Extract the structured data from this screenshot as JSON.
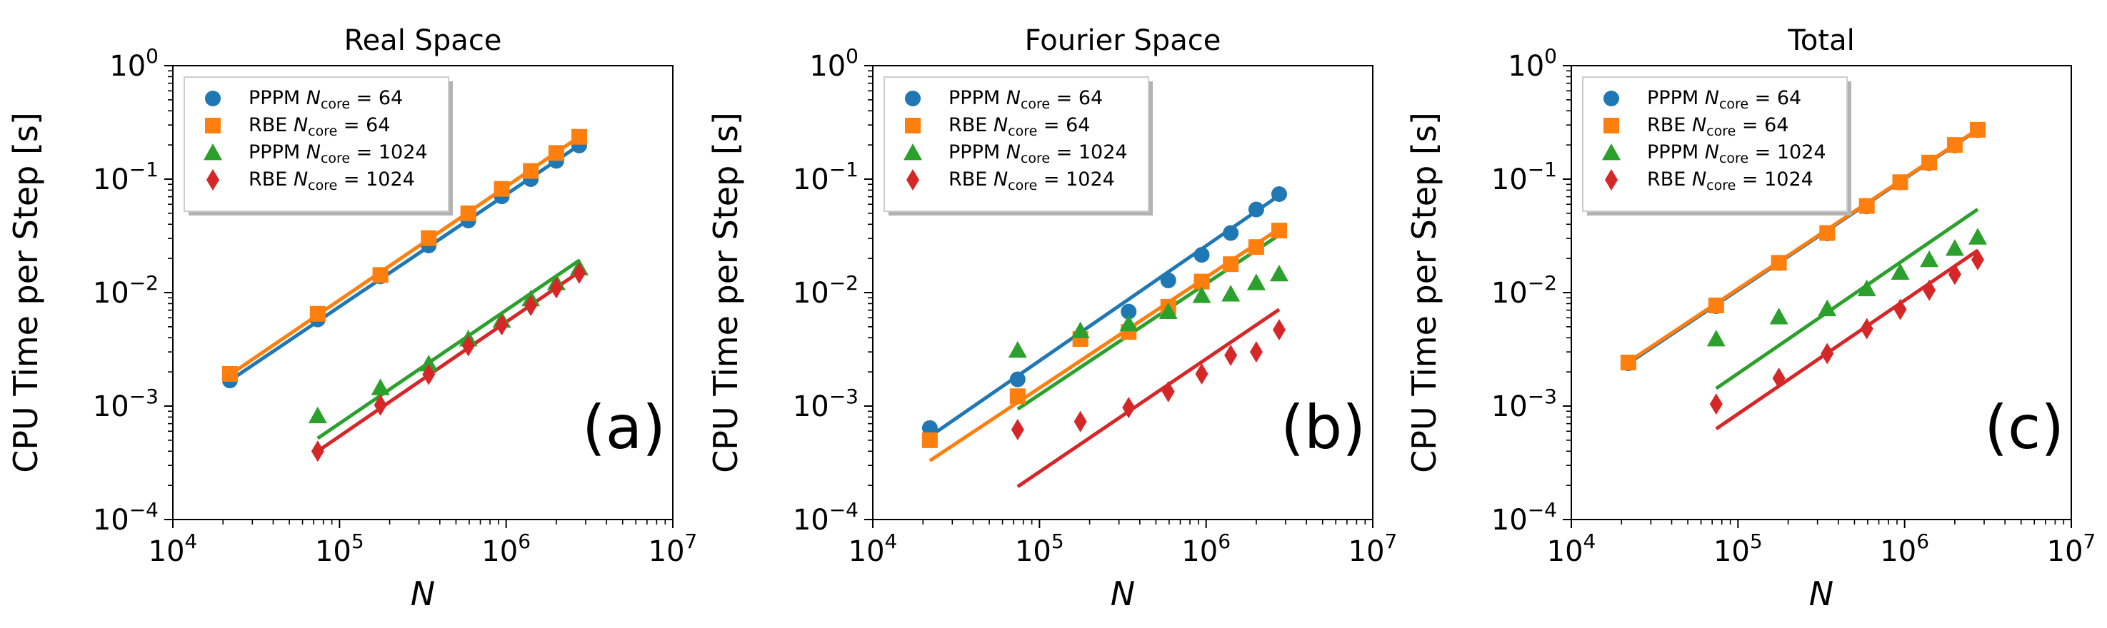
{
  "figure": {
    "colors": {
      "PPPM_64": "#1f77b4",
      "RBE_64": "#ff7f0e",
      "PPPM_1024": "#2ca02c",
      "RBE_1024": "#d62728"
    },
    "legend_entries": [
      {
        "prefix": "PPPM",
        "subscript": "core",
        "value": "64",
        "marker": "circle",
        "color_key": "PPPM_64"
      },
      {
        "prefix": "RBE",
        "subscript": "core",
        "value": "64",
        "marker": "square",
        "color_key": "RBE_64"
      },
      {
        "prefix": "PPPM",
        "subscript": "core",
        "value": "1024",
        "marker": "triangle",
        "color_key": "PPPM_1024"
      },
      {
        "prefix": "RBE",
        "subscript": "core",
        "value": "1024",
        "marker": "diamond",
        "color_key": "RBE_1024"
      }
    ],
    "legend_symbol": "N",
    "legend_placement": "upper-left"
  },
  "chart_data": [
    {
      "type": "scatter",
      "panel": "(a)",
      "title": "Real Space",
      "xlabel": "N",
      "ylabel": "CPU Time per Step [s]",
      "xscale": "log",
      "yscale": "log",
      "xlim": [
        10000,
        10000000
      ],
      "ylim": [
        0.0001,
        1
      ],
      "x_ticks": [
        "10^4",
        "10^5",
        "10^6",
        "10^7"
      ],
      "y_ticks": [
        "10^-4",
        "10^-3",
        "10^-2",
        "10^-1",
        "10^0"
      ],
      "series": [
        {
          "name": "PPPM N_core = 64",
          "color_key": "PPPM_64",
          "marker": "circle",
          "x": [
            22000,
            74000,
            176000,
            343000,
            593000,
            941000,
            1405000,
            2000000,
            2744000
          ],
          "y": [
            0.00168,
            0.0058,
            0.0139,
            0.026,
            0.0432,
            0.0705,
            0.1,
            0.145,
            0.198
          ],
          "fit": {
            "x0": 22000,
            "y0": 0.00168,
            "x1": 2744000,
            "y1": 0.199
          }
        },
        {
          "name": "RBE N_core = 64",
          "color_key": "RBE_64",
          "marker": "square",
          "x": [
            22000,
            74000,
            176000,
            343000,
            593000,
            941000,
            1405000,
            2000000,
            2744000
          ],
          "y": [
            0.00192,
            0.0065,
            0.0143,
            0.0302,
            0.05,
            0.082,
            0.118,
            0.17,
            0.236
          ],
          "fit": {
            "x0": 22000,
            "y0": 0.00189,
            "x1": 2744000,
            "y1": 0.236
          }
        },
        {
          "name": "PPPM N_core = 1024",
          "color_key": "PPPM_1024",
          "marker": "triangle",
          "x": [
            74000,
            176000,
            343000,
            593000,
            941000,
            1405000,
            2000000,
            2744000
          ],
          "y": [
            0.00082,
            0.00145,
            0.00235,
            0.0039,
            0.0057,
            0.0088,
            0.0122,
            0.0165
          ],
          "fit": {
            "x0": 74000,
            "y0": 0.00052,
            "x1": 2744000,
            "y1": 0.0192
          }
        },
        {
          "name": "RBE N_core = 1024",
          "color_key": "RBE_1024",
          "marker": "diamond",
          "x": [
            74000,
            176000,
            343000,
            593000,
            941000,
            1405000,
            2000000,
            2744000
          ],
          "y": [
            0.0004,
            0.00102,
            0.0019,
            0.0034,
            0.0052,
            0.0077,
            0.011,
            0.0148
          ],
          "fit": {
            "x0": 74000,
            "y0": 0.0004,
            "x1": 2744000,
            "y1": 0.0152
          }
        }
      ]
    },
    {
      "type": "scatter",
      "panel": "(b)",
      "title": "Fourier Space",
      "xlabel": "N",
      "ylabel": "CPU Time per Step [s]",
      "xscale": "log",
      "yscale": "log",
      "xlim": [
        10000,
        10000000
      ],
      "ylim": [
        0.0001,
        1
      ],
      "x_ticks": [
        "10^4",
        "10^5",
        "10^6",
        "10^7"
      ],
      "y_ticks": [
        "10^-4",
        "10^-3",
        "10^-2",
        "10^-1",
        "10^0"
      ],
      "series": [
        {
          "name": "PPPM N_core = 64",
          "color_key": "PPPM_64",
          "marker": "circle",
          "x": [
            22000,
            74000,
            343000,
            593000,
            941000,
            1405000,
            2000000,
            2744000
          ],
          "y": [
            0.00064,
            0.00172,
            0.0068,
            0.0128,
            0.0215,
            0.0335,
            0.054,
            0.0738
          ],
          "fit": {
            "x0": 22000,
            "y0": 0.00054,
            "x1": 2744000,
            "y1": 0.0718
          }
        },
        {
          "name": "RBE N_core = 64",
          "color_key": "RBE_64",
          "marker": "square",
          "x": [
            22000,
            74000,
            176000,
            343000,
            593000,
            941000,
            1405000,
            2000000,
            2744000
          ],
          "y": [
            0.0005,
            0.00122,
            0.0039,
            0.0045,
            0.0075,
            0.0125,
            0.0178,
            0.0252,
            0.0352
          ],
          "fit": {
            "x0": 22000,
            "y0": 0.00033,
            "x1": 2744000,
            "y1": 0.0365
          }
        },
        {
          "name": "PPPM N_core = 1024",
          "color_key": "PPPM_1024",
          "marker": "triangle",
          "x": [
            74000,
            176000,
            343000,
            593000,
            941000,
            1405000,
            2000000,
            2744000
          ],
          "y": [
            0.0031,
            0.0046,
            0.0053,
            0.0068,
            0.0094,
            0.0097,
            0.0122,
            0.0146
          ],
          "fit": {
            "x0": 74000,
            "y0": 0.00094,
            "x1": 2744000,
            "y1": 0.0322
          }
        },
        {
          "name": "RBE N_core = 1024",
          "color_key": "RBE_1024",
          "marker": "diamond",
          "x": [
            74000,
            176000,
            343000,
            593000,
            941000,
            1405000,
            2000000,
            2744000
          ],
          "y": [
            0.00062,
            0.00073,
            0.00097,
            0.00134,
            0.00192,
            0.0028,
            0.003,
            0.0047
          ],
          "fit": {
            "x0": 74000,
            "y0": 0.000195,
            "x1": 2744000,
            "y1": 0.0071
          }
        }
      ]
    },
    {
      "type": "scatter",
      "panel": "(c)",
      "title": "Total",
      "xlabel": "N",
      "ylabel": "CPU Time per Step [s]",
      "xscale": "log",
      "yscale": "log",
      "xlim": [
        10000,
        10000000
      ],
      "ylim": [
        0.0001,
        1
      ],
      "x_ticks": [
        "10^4",
        "10^5",
        "10^6",
        "10^7"
      ],
      "y_ticks": [
        "10^-4",
        "10^-3",
        "10^-2",
        "10^-1",
        "10^0"
      ],
      "series": [
        {
          "name": "PPPM N_core = 64",
          "color_key": "PPPM_64",
          "marker": "circle",
          "x": [
            22000,
            74000,
            176000,
            343000,
            593000,
            941000,
            1405000,
            2000000,
            2744000
          ],
          "y": [
            0.00238,
            0.0076,
            0.0182,
            0.0332,
            0.0575,
            0.0935,
            0.138,
            0.198,
            0.27
          ],
          "fit": {
            "x0": 22000,
            "y0": 0.00238,
            "x1": 2744000,
            "y1": 0.272
          }
        },
        {
          "name": "RBE N_core = 64",
          "color_key": "RBE_64",
          "marker": "square",
          "x": [
            22000,
            74000,
            176000,
            343000,
            593000,
            941000,
            1405000,
            2000000,
            2744000
          ],
          "y": [
            0.00242,
            0.0077,
            0.0183,
            0.0335,
            0.058,
            0.094,
            0.14,
            0.2,
            0.272
          ],
          "fit": {
            "x0": 22000,
            "y0": 0.00245,
            "x1": 2744000,
            "y1": 0.275
          }
        },
        {
          "name": "PPPM N_core = 1024",
          "color_key": "PPPM_1024",
          "marker": "triangle",
          "x": [
            74000,
            176000,
            343000,
            593000,
            941000,
            1405000,
            2000000,
            2744000
          ],
          "y": [
            0.0039,
            0.0061,
            0.0072,
            0.0108,
            0.0151,
            0.0195,
            0.0245,
            0.0308
          ],
          "fit": {
            "x0": 74000,
            "y0": 0.00143,
            "x1": 2744000,
            "y1": 0.0542
          }
        },
        {
          "name": "RBE N_core = 1024",
          "color_key": "RBE_1024",
          "marker": "diamond",
          "x": [
            74000,
            176000,
            343000,
            593000,
            941000,
            1405000,
            2000000,
            2744000
          ],
          "y": [
            0.00104,
            0.00176,
            0.0029,
            0.0048,
            0.0071,
            0.0105,
            0.0145,
            0.0195
          ],
          "fit": {
            "x0": 74000,
            "y0": 0.00063,
            "x1": 2744000,
            "y1": 0.0235
          }
        }
      ]
    }
  ]
}
